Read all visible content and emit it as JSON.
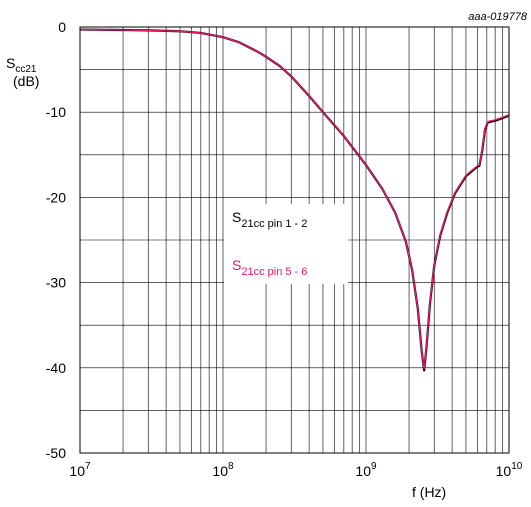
{
  "identifier": "aaa-019778",
  "chart_data": {
    "type": "line",
    "x_scale": "log",
    "xlim": [
      10000000,
      10000000000
    ],
    "ylim": [
      -50,
      0
    ],
    "grid": true,
    "xlabel": "f (Hz)",
    "ylabel": {
      "main": "S",
      "sub": "cc21",
      "unit": "(dB)"
    },
    "x_ticks": [
      {
        "base": "10",
        "exp": "7"
      },
      {
        "base": "10",
        "exp": "8"
      },
      {
        "base": "10",
        "exp": "9"
      },
      {
        "base": "10",
        "exp": "10"
      }
    ],
    "y_ticks": [
      "0",
      "-10",
      "-20",
      "-30",
      "-40",
      "-50"
    ],
    "legend_placement": "center",
    "series": [
      {
        "name": {
          "main": "S",
          "sub": "21cc pin 1 - 2"
        },
        "color": "#000000",
        "x": [
          10000000,
          20000000,
          30000000,
          50000000,
          70000000,
          100000000,
          130000000,
          170000000,
          200000000,
          250000000,
          300000000,
          400000000,
          500000000,
          700000000,
          1000000000,
          1300000000,
          1600000000,
          1900000000,
          2100000000,
          2300000000,
          2450000000,
          2550000000,
          2650000000,
          2800000000,
          3000000000,
          3300000000,
          3700000000,
          4200000000,
          5000000000,
          5800000000,
          6000000000,
          6200000000,
          6500000000,
          6800000000,
          7100000000,
          8000000000,
          9000000000,
          10000000000
        ],
        "y": [
          -0.3,
          -0.35,
          -0.4,
          -0.5,
          -0.7,
          -1.2,
          -1.8,
          -2.8,
          -3.5,
          -4.6,
          -5.8,
          -8.1,
          -10.0,
          -12.8,
          -16.2,
          -19.0,
          -21.8,
          -25.2,
          -28.5,
          -33.0,
          -38.0,
          -40.3,
          -37.5,
          -32.5,
          -28.0,
          -24.5,
          -21.8,
          -19.5,
          -17.5,
          -16.6,
          -16.4,
          -16.3,
          -14.5,
          -12.0,
          -11.2,
          -11.0,
          -10.7,
          -10.4
        ]
      },
      {
        "name": {
          "main": "S",
          "sub": "21cc pin 5 - 6"
        },
        "color": "#e8186e",
        "x": [
          10000000,
          20000000,
          30000000,
          50000000,
          70000000,
          100000000,
          130000000,
          170000000,
          200000000,
          250000000,
          300000000,
          400000000,
          500000000,
          700000000,
          1000000000,
          1300000000,
          1600000000,
          1900000000,
          2100000000,
          2300000000,
          2450000000,
          2550000000,
          2650000000,
          2800000000,
          3000000000,
          3300000000,
          3700000000,
          4200000000,
          5000000000,
          5800000000,
          6000000000,
          6200000000,
          6500000000,
          6800000000,
          7100000000,
          8000000000,
          9000000000,
          10000000000
        ],
        "y": [
          -0.3,
          -0.35,
          -0.4,
          -0.5,
          -0.7,
          -1.2,
          -1.8,
          -2.8,
          -3.5,
          -4.6,
          -5.8,
          -8.1,
          -10.0,
          -12.8,
          -16.2,
          -19.0,
          -21.8,
          -25.2,
          -28.5,
          -33.0,
          -38.0,
          -40.1,
          -37.4,
          -32.4,
          -27.9,
          -24.4,
          -21.7,
          -19.4,
          -17.4,
          -16.5,
          -16.3,
          -16.2,
          -14.4,
          -11.9,
          -11.1,
          -10.9,
          -10.6,
          -10.3
        ]
      }
    ]
  }
}
